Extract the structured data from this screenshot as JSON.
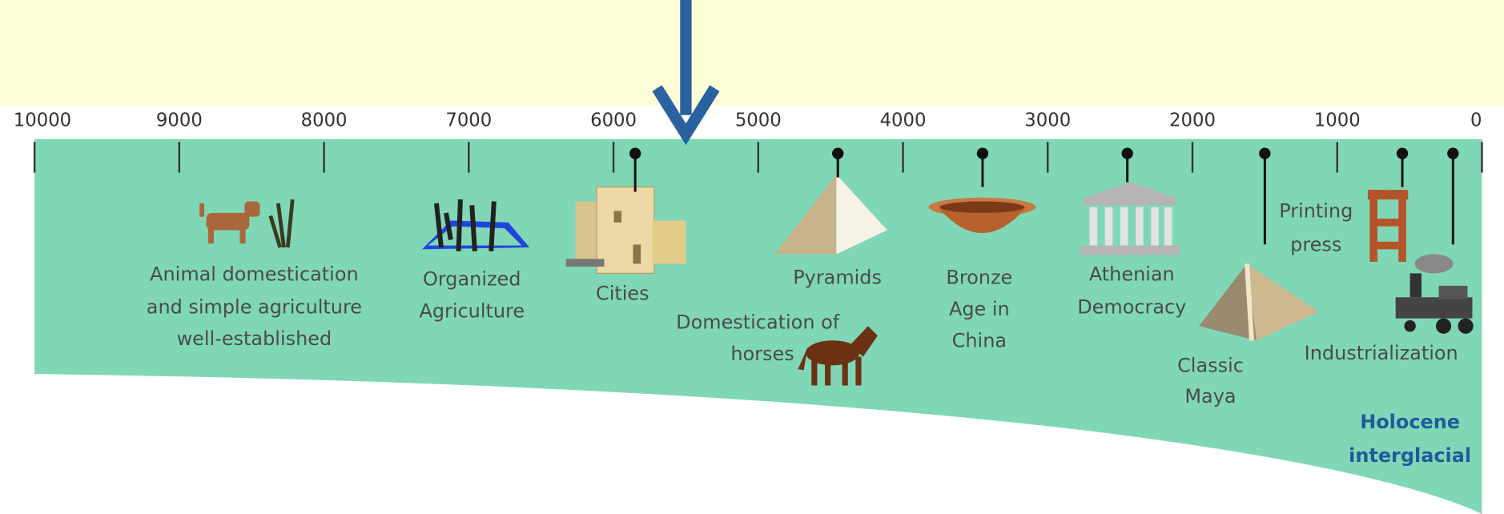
{
  "axis": {
    "range": [
      10000,
      0
    ],
    "ticks": [
      10000,
      9000,
      8000,
      7000,
      6000,
      5000,
      4000,
      3000,
      2000,
      1000,
      0
    ]
  },
  "arrow_year": 5500,
  "events": [
    {
      "label": [
        "Animal domestication",
        "and simple agriculture",
        "well-established"
      ]
    },
    {
      "label": [
        "Organized",
        "Agriculture"
      ]
    },
    {
      "label": [
        "Cities"
      ],
      "year": 5850
    },
    {
      "label": [
        "Domestication of",
        "horses"
      ]
    },
    {
      "label": [
        "Pyramids"
      ],
      "year": 4450
    },
    {
      "label": [
        "Bronze",
        "Age in",
        "China"
      ],
      "year": 3450
    },
    {
      "label": [
        "Athenian",
        "Democracy"
      ],
      "year": 2450
    },
    {
      "label": [
        "Classic",
        "Maya"
      ],
      "year": 1500
    },
    {
      "label": [
        "Printing",
        "press"
      ],
      "year": 550
    },
    {
      "label": [
        "Industrialization"
      ],
      "year": 200
    }
  ],
  "region_label": [
    "Holocene",
    "interglacial"
  ]
}
